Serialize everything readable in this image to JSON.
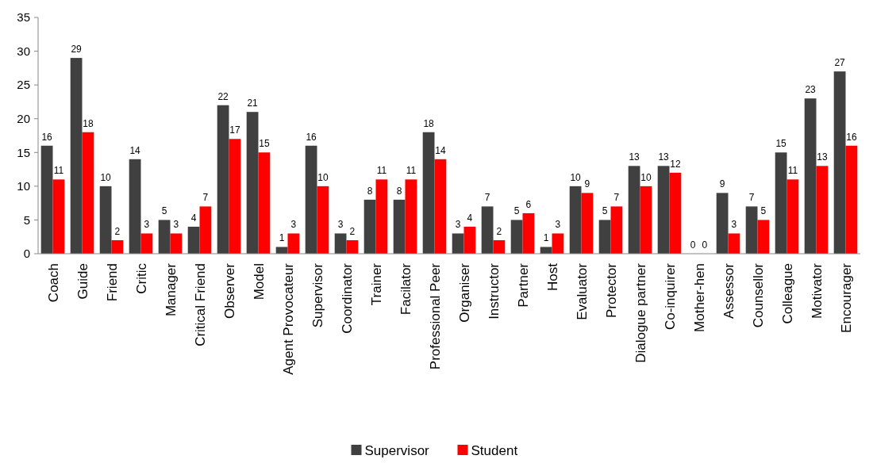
{
  "chart_data": {
    "type": "bar",
    "categories": [
      "Coach",
      "Guide",
      "Friend",
      "Critic",
      "Manager",
      "Critical Friend",
      "Observer",
      "Model",
      "Agent Provocateur",
      "Supervisor",
      "Coordinator",
      "Trainer",
      "Facilator",
      "Professional Peer",
      "Organiser",
      "Instructor",
      "Partner",
      "Host",
      "Evaluator",
      "Protector",
      "Dialogue partner",
      "Co-inquirer",
      "Mother-hen",
      "Assessor",
      "Counsellor",
      "Colleague",
      "Motivator",
      "Encourager"
    ],
    "series": [
      {
        "name": "Supervisor",
        "color": "#404040",
        "values": [
          16,
          29,
          10,
          14,
          5,
          4,
          22,
          21,
          1,
          16,
          3,
          8,
          8,
          18,
          3,
          7,
          5,
          1,
          10,
          5,
          13,
          13,
          0,
          9,
          7,
          15,
          23,
          27
        ]
      },
      {
        "name": "Student",
        "color": "#ff0000",
        "values": [
          11,
          18,
          2,
          3,
          3,
          7,
          17,
          15,
          3,
          10,
          2,
          11,
          11,
          14,
          4,
          2,
          6,
          3,
          9,
          7,
          10,
          12,
          0,
          3,
          5,
          11,
          13,
          16
        ]
      }
    ],
    "ylim": [
      0,
      35
    ],
    "yticks": [
      0,
      5,
      10,
      15,
      20,
      25,
      30,
      35
    ],
    "grid": false,
    "legend": "bottom",
    "data_labels": true
  }
}
